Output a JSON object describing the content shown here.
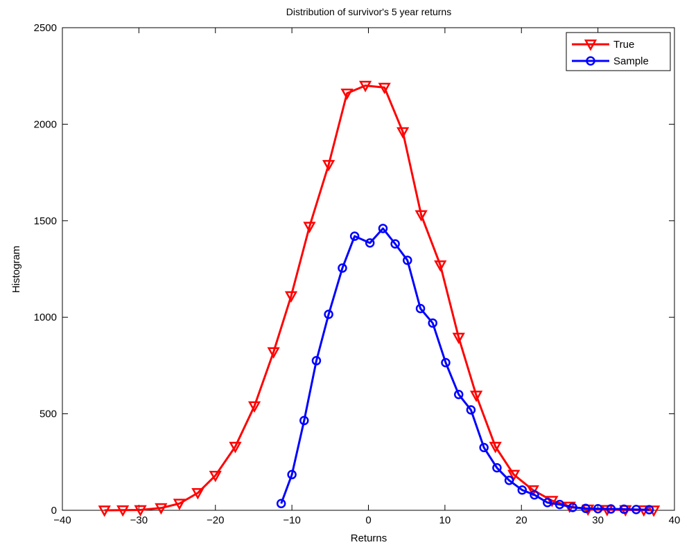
{
  "chart_data": {
    "type": "line",
    "title": "Distribution of survivor's 5 year returns",
    "xlabel": "Returns",
    "ylabel": "Histogram",
    "xlim": [
      -40,
      40
    ],
    "ylim": [
      0,
      2500
    ],
    "xticks": [
      -40,
      -30,
      -20,
      -10,
      0,
      10,
      20,
      30,
      40
    ],
    "yticks": [
      0,
      500,
      1000,
      1500,
      2000,
      2500
    ],
    "xtick_labels": [
      "−40",
      "−30",
      "−20",
      "−10",
      "0",
      "10",
      "20",
      "30",
      "40"
    ],
    "ytick_labels": [
      "0",
      "500",
      "1000",
      "1500",
      "2000",
      "2500"
    ],
    "grid": false,
    "legend_position": "top-right",
    "series": [
      {
        "name": "True",
        "color": "#ff0000",
        "marker": "triangle-down",
        "x": [
          -34.5,
          -32.1,
          -29.8,
          -27.1,
          -24.7,
          -22.3,
          -20.0,
          -17.4,
          -14.9,
          -12.4,
          -10.1,
          -7.7,
          -5.2,
          -2.8,
          -0.4,
          2.1,
          4.5,
          6.9,
          9.4,
          11.8,
          14.1,
          16.6,
          19.0,
          21.5,
          24.0,
          26.3,
          28.7,
          31.2,
          33.6,
          36.0,
          37.3
        ],
        "y": [
          0,
          1,
          2,
          12,
          35,
          90,
          180,
          330,
          540,
          820,
          1110,
          1470,
          1790,
          2160,
          2200,
          2190,
          1960,
          1530,
          1270,
          895,
          595,
          330,
          185,
          105,
          50,
          20,
          5,
          3,
          2,
          1,
          0
        ]
      },
      {
        "name": "Sample",
        "color": "#0000ff",
        "marker": "circle",
        "x": [
          -11.4,
          -10.0,
          -8.4,
          -6.8,
          -5.2,
          -3.4,
          -1.8,
          0.2,
          1.9,
          3.5,
          5.1,
          6.8,
          8.4,
          10.1,
          11.8,
          13.4,
          15.1,
          16.8,
          18.4,
          20.1,
          21.7,
          23.4,
          25.0,
          26.7,
          28.4,
          30.0,
          31.7,
          33.4,
          35.0,
          36.7
        ],
        "y": [
          35,
          185,
          465,
          775,
          1015,
          1255,
          1420,
          1385,
          1460,
          1380,
          1295,
          1045,
          970,
          765,
          600,
          520,
          325,
          220,
          155,
          105,
          80,
          40,
          30,
          15,
          10,
          8,
          7,
          6,
          4,
          3
        ]
      }
    ]
  }
}
